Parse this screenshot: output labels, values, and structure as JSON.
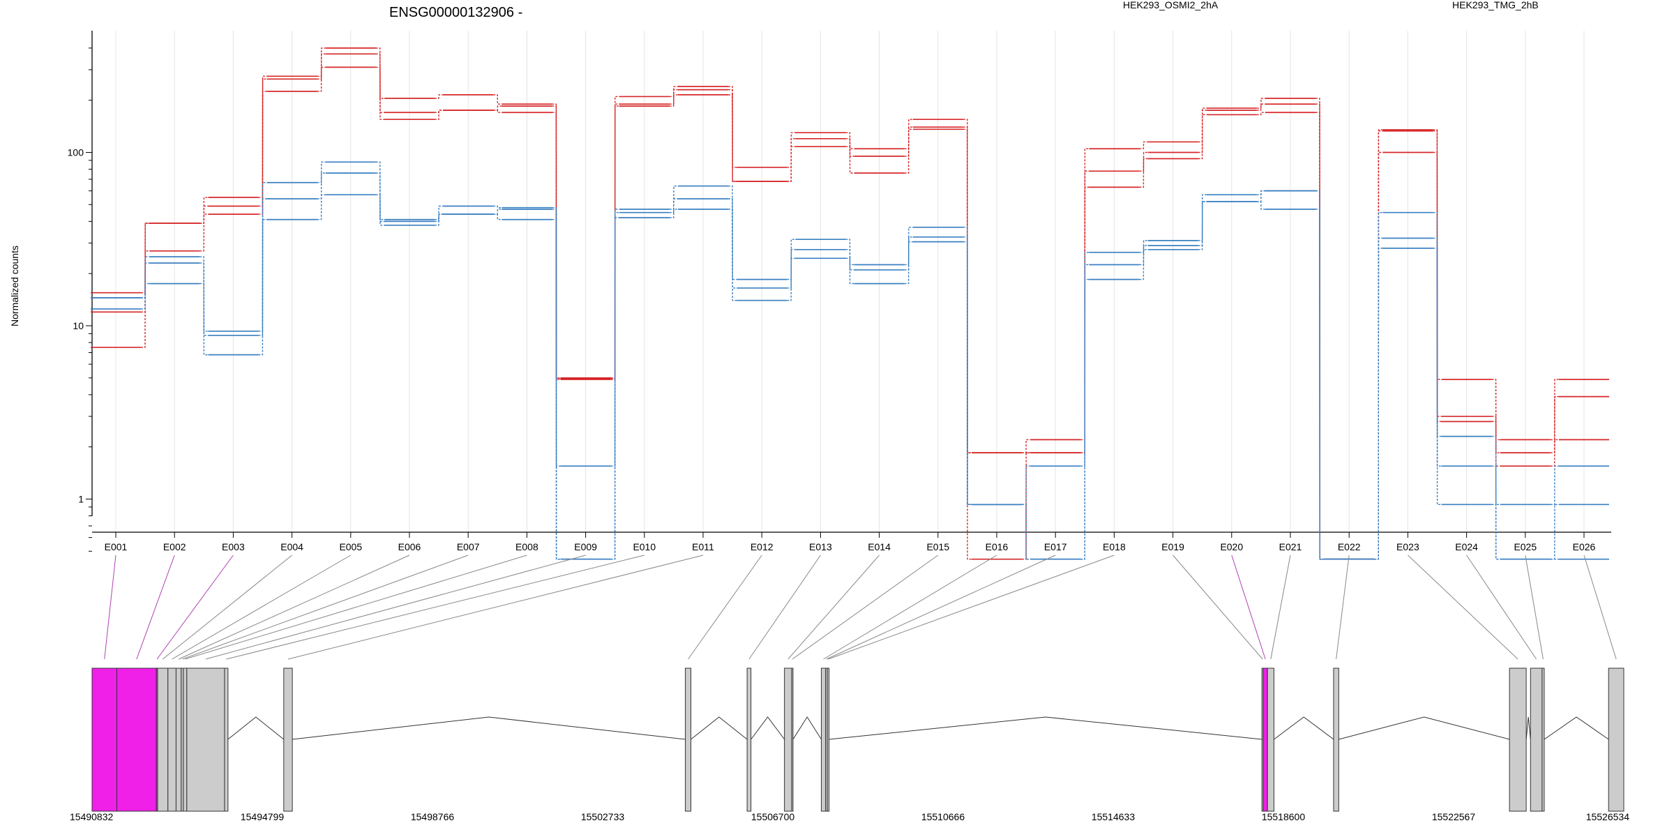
{
  "title": "ENSG00000132906 -",
  "ylabel": "Normalized counts",
  "colors": {
    "condition_a": "#d62728",
    "condition_b": "#3a7fc1",
    "highlight": "#f020e8",
    "exon_default": "#cccccc",
    "grid": "#e4e4e4"
  },
  "legend": [
    {
      "name": "HEK293_OSMI2_2hA",
      "color": "#d62728"
    },
    {
      "name": "HEK293_TMG_2hB",
      "color": "#3a7fc1"
    }
  ],
  "chart_data": {
    "type": "line",
    "scale": "log",
    "ylim": [
      0.45,
      470
    ],
    "y_ticks": [
      "1",
      "10",
      "100"
    ],
    "categories": [
      "E001",
      "E002",
      "E003",
      "E004",
      "E005",
      "E006",
      "E007",
      "E008",
      "E009",
      "E010",
      "E011",
      "E012",
      "E013",
      "E014",
      "E015",
      "E016",
      "E017",
      "E018",
      "E019",
      "E020",
      "E021",
      "E022",
      "E023",
      "E024",
      "E025",
      "E026"
    ],
    "series": [
      {
        "group": "HEK293_OSMI2_2hA",
        "values": [
          15.5,
          39,
          55,
          275,
          400,
          205,
          215,
          190,
          5.0,
          210,
          240,
          82,
          130,
          105,
          155,
          1.85,
          2.2,
          105,
          115,
          180,
          205,
          0.45,
          135,
          4.9,
          2.2,
          4.9
        ]
      },
      {
        "group": "HEK293_OSMI2_2hA",
        "values": [
          12,
          27,
          49,
          265,
          370,
          170,
          175,
          185,
          4.95,
          190,
          230,
          68,
          120,
          95,
          140,
          1.85,
          1.85,
          78,
          100,
          175,
          190,
          0.45,
          133,
          3.0,
          1.85,
          3.9
        ]
      },
      {
        "group": "HEK293_OSMI2_2hA",
        "values": [
          7.5,
          39,
          44,
          225,
          310,
          155,
          175,
          170,
          4.9,
          185,
          215,
          68,
          108,
          76,
          136,
          0.45,
          1.85,
          63,
          92,
          165,
          170,
          0.45,
          100,
          2.8,
          1.55,
          2.2
        ]
      },
      {
        "group": "HEK293_TMG_2hB",
        "values": [
          14.5,
          25,
          9.3,
          67,
          88,
          41,
          49,
          48,
          1.55,
          47,
          64,
          18.5,
          31.5,
          22.5,
          37,
          0.93,
          1.55,
          26.5,
          31,
          57,
          60,
          0.45,
          45,
          2.3,
          0.93,
          1.55
        ]
      },
      {
        "group": "HEK293_TMG_2hB",
        "values": [
          14.5,
          23,
          8.8,
          54,
          76,
          40,
          44,
          47,
          0.45,
          45,
          54,
          16.5,
          27.5,
          21,
          32.5,
          0.93,
          0.45,
          22.5,
          29,
          52,
          60,
          0.45,
          32,
          1.55,
          0.45,
          0.93
        ]
      },
      {
        "group": "HEK293_TMG_2hB",
        "values": [
          12.5,
          17.5,
          6.8,
          41,
          57,
          38,
          44,
          41,
          0.45,
          42,
          47,
          14,
          24.5,
          17.5,
          30.5,
          0.93,
          0.45,
          18.5,
          27.5,
          52,
          47,
          0.45,
          28,
          0.93,
          0.45,
          0.45
        ]
      }
    ],
    "exon_highlight": [
      "E001",
      "E002",
      "E003",
      "E020"
    ],
    "genomic_axis": {
      "range": [
        15490832,
        15526534
      ],
      "ticks": [
        "15490832",
        "15494799",
        "15498766",
        "15502733",
        "15506700",
        "15510666",
        "15514633",
        "15518600",
        "15522567",
        "15526534"
      ]
    },
    "exons": [
      {
        "id": "E001",
        "start": 15490832,
        "end": 15491410
      },
      {
        "id": "E002",
        "start": 15491410,
        "end": 15492330
      },
      {
        "id": "E003",
        "start": 15492330,
        "end": 15492360
      },
      {
        "id": "E004",
        "start": 15492360,
        "end": 15492600
      },
      {
        "id": "E005",
        "start": 15492600,
        "end": 15492790
      },
      {
        "id": "E006",
        "start": 15492790,
        "end": 15492910
      },
      {
        "id": "E007",
        "start": 15492910,
        "end": 15492960
      },
      {
        "id": "E008",
        "start": 15492960,
        "end": 15493040
      },
      {
        "id": "E009",
        "start": 15493040,
        "end": 15493920
      },
      {
        "id": "E010",
        "start": 15493920,
        "end": 15494000
      },
      {
        "id": "E011",
        "start": 15495300,
        "end": 15495500
      },
      {
        "id": "E012",
        "start": 15504660,
        "end": 15504790
      },
      {
        "id": "E013",
        "start": 15506100,
        "end": 15506190
      },
      {
        "id": "E014",
        "start": 15506970,
        "end": 15507140
      },
      {
        "id": "E015",
        "start": 15507140,
        "end": 15507170
      },
      {
        "id": "E016",
        "start": 15507830,
        "end": 15507930
      },
      {
        "id": "E017",
        "start": 15507930,
        "end": 15507970
      },
      {
        "id": "E018",
        "start": 15507970,
        "end": 15508010
      },
      {
        "id": "E019",
        "start": 15518100,
        "end": 15518130
      },
      {
        "id": "E020",
        "start": 15518130,
        "end": 15518230
      },
      {
        "id": "E021",
        "start": 15518230,
        "end": 15518380
      },
      {
        "id": "E022",
        "start": 15519770,
        "end": 15519890
      },
      {
        "id": "E023",
        "start": 15523870,
        "end": 15524260
      },
      {
        "id": "E024",
        "start": 15524360,
        "end": 15524630
      },
      {
        "id": "E025",
        "start": 15524630,
        "end": 15524680
      },
      {
        "id": "E026",
        "start": 15526180,
        "end": 15526534
      }
    ]
  }
}
